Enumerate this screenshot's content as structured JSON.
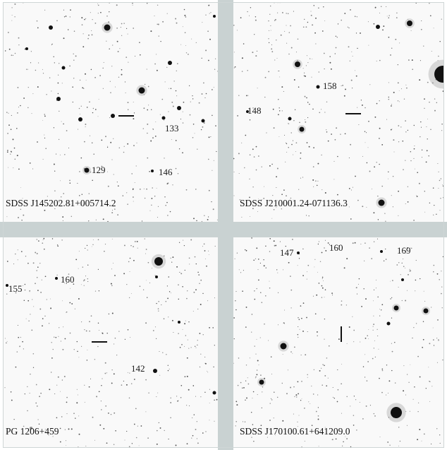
{
  "panels": [
    {
      "id": "top-left",
      "name": "SDSS J145202.81+005714.2",
      "stars": [
        "129",
        "133",
        "146"
      ]
    },
    {
      "id": "top-right",
      "name": "SDSS J210001.24-071136.3",
      "stars": [
        "148",
        "158"
      ]
    },
    {
      "id": "bottom-left",
      "name": "PG 1206+459",
      "stars": [
        "155",
        "160",
        "142"
      ]
    },
    {
      "id": "bottom-right",
      "name": "SDSS J170100.61+641209.0",
      "stars": [
        "147",
        "160",
        "169"
      ]
    }
  ],
  "colors": {
    "background": "#f9f9f9",
    "gutter": "#c9d2d2",
    "star": "#111111"
  }
}
